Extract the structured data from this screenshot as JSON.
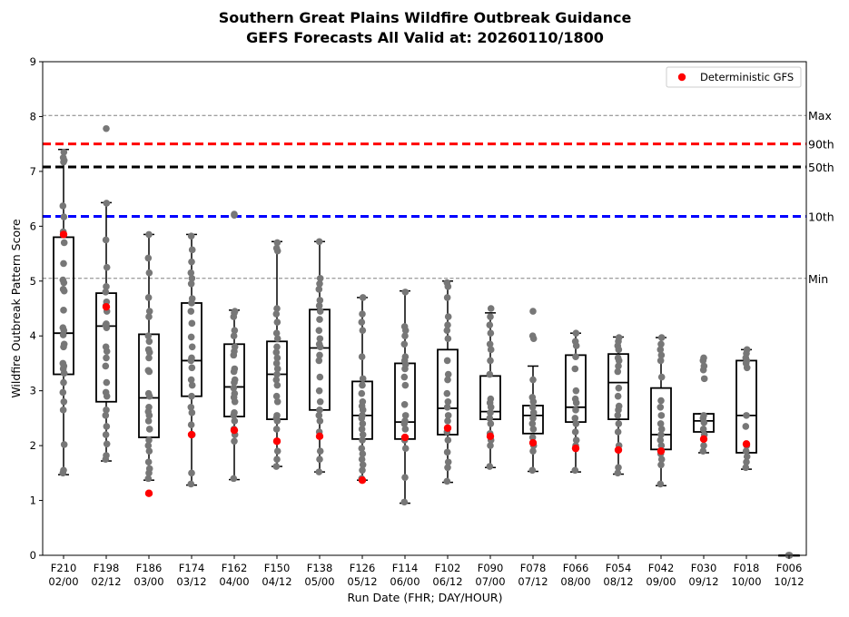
{
  "chart_data": {
    "type": "box",
    "title": "Southern Great Plains Wildfire Outbreak Guidance",
    "subtitle": "GEFS Forecasts All Valid at: 20260110/1800",
    "xlabel": "Run Date (FHR; DAY/HOUR)",
    "ylabel": "Wildfire Outbreak Pattern Score",
    "ylim": [
      0,
      9
    ],
    "yticks": [
      "0",
      "1",
      "2",
      "3",
      "4",
      "5",
      "6",
      "7",
      "8",
      "9"
    ],
    "grid": false,
    "legend": {
      "position": "top-right",
      "entries": [
        {
          "label": "Deterministic GFS",
          "color": "#ff0000"
        }
      ]
    },
    "reference_lines": [
      {
        "name": "Max",
        "value": 8.02,
        "style": "dashed",
        "color": "#808080"
      },
      {
        "name": "90th",
        "value": 7.5,
        "style": "dashed",
        "color": "#ff0000"
      },
      {
        "name": "50th",
        "value": 7.08,
        "style": "dashed",
        "color": "#000000"
      },
      {
        "name": "10th",
        "value": 6.18,
        "style": "dashed",
        "color": "#0000ff"
      },
      {
        "name": "Min",
        "value": 5.05,
        "style": "dashed",
        "color": "#808080"
      }
    ],
    "boxes": [
      {
        "fhr": "F210",
        "run": "02/00",
        "wlo": 1.47,
        "q1": 3.3,
        "med": 4.05,
        "q3": 5.8,
        "whi": 7.4,
        "det": 5.85,
        "members": [
          1.5,
          1.55,
          2.02,
          2.65,
          2.8,
          2.97,
          3.15,
          3.32,
          3.4,
          3.45,
          3.5,
          3.8,
          3.85,
          4.02,
          4.1,
          4.15,
          4.47,
          4.82,
          4.85,
          4.97,
          5.02,
          5.32,
          5.7,
          5.9,
          6.17,
          6.37,
          7.17,
          7.2,
          7.25,
          7.35
        ],
        "outliers": []
      },
      {
        "fhr": "F198",
        "run": "02/12",
        "wlo": 1.72,
        "q1": 2.8,
        "med": 4.18,
        "q3": 4.78,
        "whi": 6.43,
        "det": 4.53,
        "members": [
          1.75,
          1.82,
          2.03,
          2.2,
          2.35,
          2.55,
          2.65,
          2.9,
          2.97,
          3.15,
          3.45,
          3.6,
          3.72,
          3.8,
          4.15,
          4.2,
          4.22,
          4.45,
          4.55,
          4.62,
          4.8,
          4.9,
          5.25,
          5.75,
          6.42
        ],
        "outliers": [
          7.78
        ]
      },
      {
        "fhr": "F186",
        "run": "03/00",
        "wlo": 1.37,
        "q1": 2.15,
        "med": 2.87,
        "q3": 4.03,
        "whi": 5.85,
        "det": 1.13,
        "members": [
          1.4,
          1.5,
          1.58,
          1.7,
          1.9,
          2.0,
          2.1,
          2.3,
          2.45,
          2.55,
          2.62,
          2.7,
          2.9,
          2.95,
          3.35,
          3.37,
          3.6,
          3.7,
          3.75,
          3.9,
          4.0,
          4.35,
          4.45,
          4.7,
          5.15,
          5.42,
          5.85
        ],
        "outliers": []
      },
      {
        "fhr": "F174",
        "run": "03/12",
        "wlo": 1.28,
        "q1": 2.9,
        "med": 3.55,
        "q3": 4.6,
        "whi": 5.85,
        "det": 2.2,
        "members": [
          1.3,
          1.5,
          2.2,
          2.38,
          2.6,
          2.7,
          2.9,
          3.1,
          3.2,
          3.42,
          3.55,
          3.6,
          3.8,
          3.98,
          4.23,
          4.45,
          4.6,
          4.68,
          4.95,
          5.05,
          5.15,
          5.35,
          5.57,
          5.82
        ],
        "outliers": []
      },
      {
        "fhr": "F162",
        "run": "04/00",
        "wlo": 1.38,
        "q1": 2.53,
        "med": 3.07,
        "q3": 3.85,
        "whi": 4.47,
        "det": 2.28,
        "members": [
          1.4,
          2.08,
          2.2,
          2.3,
          2.45,
          2.55,
          2.6,
          2.8,
          2.88,
          2.95,
          3.05,
          3.15,
          3.2,
          3.35,
          3.4,
          3.65,
          3.72,
          3.8,
          4.0,
          4.1,
          4.35,
          4.42,
          4.45
        ],
        "outliers": [
          6.2,
          6.22
        ]
      },
      {
        "fhr": "F150",
        "run": "04/12",
        "wlo": 1.62,
        "q1": 2.48,
        "med": 3.3,
        "q3": 3.9,
        "whi": 5.72,
        "det": 2.08,
        "members": [
          1.62,
          1.75,
          1.9,
          2.3,
          2.45,
          2.5,
          2.55,
          2.8,
          2.9,
          3.1,
          3.2,
          3.3,
          3.4,
          3.5,
          3.6,
          3.7,
          3.8,
          3.95,
          4.05,
          4.25,
          4.4,
          4.5,
          5.55,
          5.6,
          5.7
        ],
        "outliers": []
      },
      {
        "fhr": "F138",
        "run": "05/00",
        "wlo": 1.52,
        "q1": 2.65,
        "med": 3.78,
        "q3": 4.48,
        "whi": 5.72,
        "det": 2.17,
        "members": [
          1.52,
          1.75,
          1.9,
          2.25,
          2.45,
          2.55,
          2.65,
          2.8,
          3.0,
          3.25,
          3.55,
          3.65,
          3.8,
          3.85,
          3.95,
          4.1,
          4.3,
          4.45,
          4.55,
          4.65,
          4.85,
          4.95,
          5.05,
          5.72
        ],
        "outliers": []
      },
      {
        "fhr": "F126",
        "run": "05/12",
        "wlo": 1.37,
        "q1": 2.12,
        "med": 2.55,
        "q3": 3.17,
        "whi": 4.7,
        "det": 1.37,
        "members": [
          1.4,
          1.55,
          1.65,
          1.75,
          1.85,
          1.95,
          2.1,
          2.2,
          2.3,
          2.4,
          2.5,
          2.55,
          2.65,
          2.72,
          2.8,
          2.95,
          3.1,
          3.22,
          3.62,
          4.1,
          4.25,
          4.4,
          4.7
        ],
        "outliers": []
      },
      {
        "fhr": "F114",
        "run": "06/00",
        "wlo": 0.95,
        "q1": 2.12,
        "med": 2.43,
        "q3": 3.5,
        "whi": 4.82,
        "det": 2.15,
        "members": [
          0.97,
          1.42,
          1.95,
          2.1,
          2.3,
          2.4,
          2.45,
          2.55,
          2.75,
          3.1,
          3.25,
          3.4,
          3.48,
          3.55,
          3.62,
          3.85,
          4.0,
          4.1,
          4.17,
          4.8
        ],
        "outliers": []
      },
      {
        "fhr": "F102",
        "run": "06/12",
        "wlo": 1.33,
        "q1": 2.2,
        "med": 2.68,
        "q3": 3.75,
        "whi": 5.0,
        "det": 2.32,
        "members": [
          1.35,
          1.6,
          1.7,
          1.88,
          2.1,
          2.25,
          2.45,
          2.55,
          2.7,
          2.8,
          2.95,
          3.2,
          3.3,
          3.55,
          3.95,
          4.1,
          4.2,
          4.35,
          4.7,
          4.9,
          4.97
        ],
        "outliers": []
      },
      {
        "fhr": "F090",
        "run": "07/00",
        "wlo": 1.6,
        "q1": 2.48,
        "med": 2.62,
        "q3": 3.27,
        "whi": 4.42,
        "det": 2.17,
        "members": [
          1.62,
          2.0,
          2.1,
          2.22,
          2.4,
          2.5,
          2.6,
          2.7,
          2.78,
          2.85,
          3.3,
          3.55,
          3.75,
          3.85,
          4.05,
          4.2,
          4.35,
          4.5
        ],
        "outliers": []
      },
      {
        "fhr": "F078",
        "run": "07/12",
        "wlo": 1.53,
        "q1": 2.22,
        "med": 2.55,
        "q3": 2.73,
        "whi": 3.45,
        "det": 2.05,
        "members": [
          1.55,
          1.9,
          2.0,
          2.15,
          2.3,
          2.4,
          2.5,
          2.6,
          2.7,
          2.8,
          2.88,
          3.2,
          3.95,
          4.0
        ],
        "outliers": [
          4.45
        ]
      },
      {
        "fhr": "F066",
        "run": "08/00",
        "wlo": 1.52,
        "q1": 2.43,
        "med": 2.7,
        "q3": 3.65,
        "whi": 4.05,
        "det": 1.95,
        "members": [
          1.55,
          2.0,
          2.1,
          2.25,
          2.4,
          2.5,
          2.65,
          2.78,
          2.85,
          3.0,
          3.4,
          3.62,
          3.82,
          3.9,
          4.05
        ],
        "outliers": []
      },
      {
        "fhr": "F054",
        "run": "08/12",
        "wlo": 1.48,
        "q1": 2.48,
        "med": 3.15,
        "q3": 3.67,
        "whi": 3.98,
        "det": 1.92,
        "members": [
          1.5,
          1.6,
          2.0,
          2.25,
          2.4,
          2.55,
          2.65,
          2.72,
          2.9,
          3.05,
          3.35,
          3.45,
          3.55,
          3.6,
          3.75,
          3.82,
          3.9,
          3.97
        ],
        "outliers": []
      },
      {
        "fhr": "F042",
        "run": "09/00",
        "wlo": 1.27,
        "q1": 1.93,
        "med": 2.2,
        "q3": 3.05,
        "whi": 3.97,
        "det": 1.9,
        "members": [
          1.3,
          1.65,
          1.75,
          1.85,
          2.0,
          2.1,
          2.2,
          2.3,
          2.4,
          2.55,
          2.7,
          2.82,
          3.25,
          3.55,
          3.65,
          3.75,
          3.85,
          3.97
        ],
        "outliers": []
      },
      {
        "fhr": "F030",
        "run": "09/12",
        "wlo": 1.87,
        "q1": 2.25,
        "med": 2.45,
        "q3": 2.58,
        "whi": 2.58,
        "det": 2.12,
        "members": [
          1.9,
          2.0,
          2.2,
          2.3,
          2.42,
          2.5,
          2.55,
          3.22,
          3.38,
          3.45,
          3.55,
          3.6
        ],
        "outliers": []
      },
      {
        "fhr": "F018",
        "run": "10/00",
        "wlo": 1.57,
        "q1": 1.87,
        "med": 2.55,
        "q3": 3.55,
        "whi": 3.75,
        "det": 2.03,
        "members": [
          1.6,
          1.7,
          1.8,
          1.9,
          2.0,
          2.35,
          2.55,
          3.42,
          3.5,
          3.55,
          3.6,
          3.68,
          3.75
        ],
        "outliers": []
      },
      {
        "fhr": "F006",
        "run": "10/12",
        "wlo": 0.0,
        "q1": 0.0,
        "med": 0.0,
        "q3": 0.0,
        "whi": 0.0,
        "det": null,
        "members": [
          0.0,
          0.0,
          0.0
        ],
        "outliers": []
      }
    ]
  }
}
